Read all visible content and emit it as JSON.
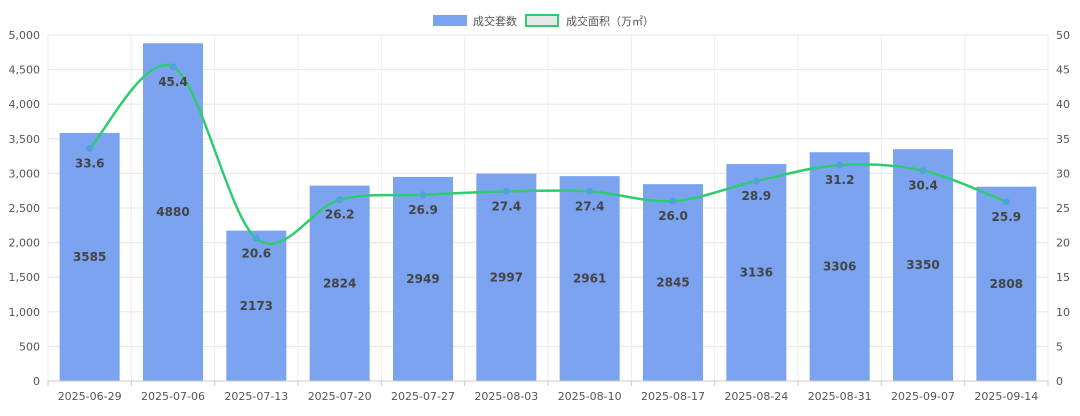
{
  "chart_data": {
    "type": "bar",
    "categories": [
      "2025-06-29",
      "2025-07-06",
      "2025-07-13",
      "2025-07-20",
      "2025-07-27",
      "2025-08-03",
      "2025-08-10",
      "2025-08-17",
      "2025-08-24",
      "2025-08-31",
      "2025-09-07",
      "2025-09-14"
    ],
    "series": [
      {
        "name": "成交套数",
        "type": "bar",
        "axis": "left",
        "color": "#7BA3F0",
        "values": [
          3585,
          4880,
          2173,
          2824,
          2949,
          2997,
          2961,
          2845,
          3136,
          3306,
          3350,
          2808
        ],
        "labels": [
          "3585",
          "4880",
          "2173",
          "2824",
          "2949",
          "2997",
          "2961",
          "2845",
          "3136",
          "3306",
          "3350",
          "2808"
        ]
      },
      {
        "name": "成交面积（万㎡）",
        "type": "line",
        "axis": "right",
        "color": "#2ECC71",
        "point_color": "#4EA3D9",
        "values": [
          33.6,
          45.4,
          20.6,
          26.2,
          26.9,
          27.4,
          27.4,
          26.0,
          28.9,
          31.2,
          30.4,
          25.9
        ],
        "labels": [
          "33.6",
          "45.4",
          "20.6",
          "26.2",
          "26.9",
          "27.4",
          "27.4",
          "26.0",
          "28.9",
          "31.2",
          "30.4",
          "25.9"
        ]
      }
    ],
    "y_left": {
      "ylim": [
        0,
        5000
      ],
      "ticks": [
        0,
        500,
        1000,
        1500,
        2000,
        2500,
        3000,
        3500,
        4000,
        4500,
        5000
      ],
      "tick_labels": [
        "0",
        "500",
        "1,000",
        "1,500",
        "2,000",
        "2,500",
        "3,000",
        "3,500",
        "4,000",
        "4,500",
        "5,000"
      ]
    },
    "y_right": {
      "ylim": [
        0,
        50
      ],
      "ticks": [
        0,
        5,
        10,
        15,
        20,
        25,
        30,
        35,
        40,
        45,
        50
      ],
      "tick_labels": [
        "0",
        "5",
        "10",
        "15",
        "20",
        "25",
        "30",
        "35",
        "40",
        "45",
        "50"
      ]
    },
    "grid": true,
    "legend_position": "top-center"
  }
}
